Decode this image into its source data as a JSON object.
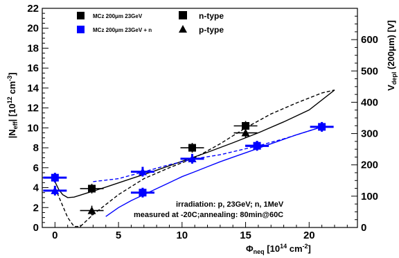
{
  "chart_data": {
    "type": "scatter",
    "x_axis": {
      "label_main": "Φ",
      "label_sub": "neq",
      "label_unit_pre": " [10",
      "label_unit_sup": "14",
      "label_unit_post": " cm",
      "label_unit_sup2": "-2",
      "label_close": "]",
      "range": [
        -1,
        23.8
      ],
      "ticks": [
        "0",
        "5",
        "10",
        "15",
        "20"
      ]
    },
    "y_axis_left": {
      "label_a": "|N",
      "label_sub": "eff",
      "label_b": "| [10",
      "label_sup": "12",
      "label_c": " cm",
      "label_sup2": "-3",
      "label_d": "]",
      "range": [
        0,
        22
      ],
      "ticks": [
        "0",
        "2",
        "4",
        "6",
        "8",
        "10",
        "12",
        "14",
        "16",
        "18",
        "20",
        "22"
      ]
    },
    "y_axis_right": {
      "label_a": "V",
      "label_sub": "depl",
      "label_b": " (200",
      "label_mu": "μ",
      "label_c": "m) [V]",
      "range": [
        0,
        700
      ],
      "ticks": [
        "0",
        "100",
        "200",
        "300",
        "400",
        "500",
        "600"
      ]
    },
    "legend": {
      "position": "top-left",
      "items": [
        {
          "label": "MCz 200μm 23GeV",
          "color": "#000000"
        },
        {
          "label": "MCz 200μm 23GeV + n",
          "color": "#0000ff"
        },
        {
          "label": "n-type",
          "marker": "square"
        },
        {
          "label": "p-type",
          "marker": "triangle"
        }
      ]
    },
    "annotations": [
      "irradiation: p, 23GeV; n, 1MeV",
      "measured at -20C;annealing: 80min@60C"
    ],
    "series": [
      {
        "name": "MCz 200μm 23GeV",
        "type": "n-type",
        "color": "#000000",
        "points": [
          [
            2.9,
            3.9
          ],
          [
            10.8,
            8.0
          ],
          [
            15.0,
            10.2
          ]
        ]
      },
      {
        "name": "MCz 200μm 23GeV",
        "type": "p-type",
        "color": "#000000",
        "points": [
          [
            2.9,
            1.7
          ],
          [
            10.8,
            6.9
          ],
          [
            15.0,
            9.5
          ]
        ]
      },
      {
        "name": "MCz 200μm 23GeV + n",
        "type": "n-type",
        "color": "#0000ff",
        "points": [
          [
            0.0,
            5.0
          ],
          [
            6.9,
            3.5
          ],
          [
            15.9,
            8.2
          ],
          [
            21.0,
            10.1
          ]
        ]
      },
      {
        "name": "MCz 200μm 23GeV + n",
        "type": "p-type",
        "color": "#0000ff",
        "points": [
          [
            0.0,
            3.7
          ],
          [
            6.9,
            5.6
          ],
          [
            10.8,
            6.9
          ],
          [
            15.9,
            8.2
          ]
        ]
      }
    ],
    "fit_curves": [
      {
        "color": "#000000",
        "style": "solid",
        "points": [
          [
            0,
            4.6
          ],
          [
            0.3,
            3.8
          ],
          [
            0.6,
            3.3
          ],
          [
            1,
            3.0
          ],
          [
            1.5,
            3.05
          ],
          [
            2.5,
            3.45
          ],
          [
            4,
            4.05
          ],
          [
            6,
            4.9
          ],
          [
            8,
            5.75
          ],
          [
            10,
            6.65
          ],
          [
            12,
            7.55
          ],
          [
            14,
            8.5
          ],
          [
            16,
            9.5
          ],
          [
            18,
            10.6
          ],
          [
            20,
            11.8
          ],
          [
            22,
            13.8
          ]
        ]
      },
      {
        "color": "#000000",
        "style": "dashed",
        "points": [
          [
            0,
            4.0
          ],
          [
            0.5,
            2.5
          ],
          [
            1,
            1.0
          ],
          [
            1.5,
            0.1
          ],
          [
            2,
            0.1
          ],
          [
            3,
            1.3
          ],
          [
            5,
            3.3
          ],
          [
            7,
            4.9
          ],
          [
            9,
            6.0
          ],
          [
            11,
            7.0
          ],
          [
            13,
            8.4
          ],
          [
            15,
            10.0
          ],
          [
            17,
            11.4
          ],
          [
            19,
            12.5
          ],
          [
            21,
            13.5
          ],
          [
            22,
            13.8
          ]
        ]
      },
      {
        "color": "#0000ff",
        "style": "solid",
        "points": [
          [
            4,
            1.1
          ],
          [
            5,
            2.0
          ],
          [
            6,
            2.7
          ],
          [
            7,
            3.3
          ],
          [
            8,
            3.9
          ],
          [
            9,
            4.5
          ],
          [
            10,
            5.1
          ],
          [
            11,
            5.6
          ],
          [
            12,
            6.1
          ],
          [
            13,
            6.6
          ],
          [
            14,
            7.05
          ],
          [
            15,
            7.5
          ],
          [
            16,
            7.95
          ],
          [
            17,
            8.4
          ],
          [
            18,
            8.85
          ],
          [
            19,
            9.3
          ],
          [
            20,
            9.7
          ],
          [
            21,
            10.1
          ]
        ]
      },
      {
        "color": "#0000ff",
        "style": "dashed",
        "points": [
          [
            3,
            4.6
          ],
          [
            5,
            4.9
          ],
          [
            7,
            5.6
          ],
          [
            9,
            6.3
          ],
          [
            11,
            6.9
          ],
          [
            13,
            7.3
          ],
          [
            15,
            7.9
          ],
          [
            16,
            8.2
          ],
          [
            18,
            8.9
          ],
          [
            20,
            9.7
          ],
          [
            21,
            10.1
          ]
        ]
      }
    ]
  }
}
